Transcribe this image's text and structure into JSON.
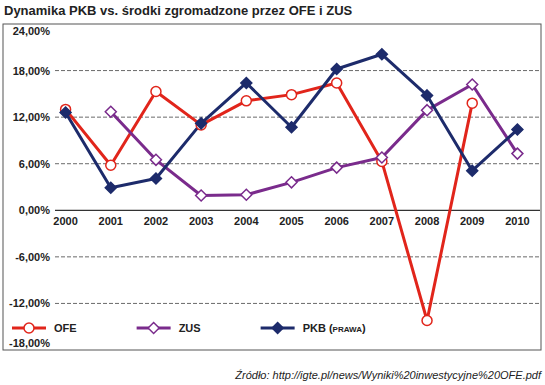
{
  "chart_data": {
    "type": "line",
    "title": "Dynamika PKB vs. środki zgromadzone przez OFE i ZUS",
    "source": "Źródło: http://igte.pl/news/Wyniki%20inwestycyjne%20OFE.pdf",
    "categories": [
      "2000",
      "2001",
      "2002",
      "2003",
      "2004",
      "2005",
      "2006",
      "2007",
      "2008",
      "2009",
      "2010"
    ],
    "series": [
      {
        "name": "OFE",
        "color": "#e1251b",
        "marker": "open-circle",
        "line_style": "solid",
        "values": [
          13.0,
          5.8,
          15.3,
          11.0,
          14.1,
          14.9,
          16.4,
          6.3,
          -14.2,
          13.8,
          null
        ]
      },
      {
        "name": "ZUS",
        "color": "#7a2b8c",
        "marker": "open-diamond",
        "line_style": "solid",
        "values": [
          null,
          12.7,
          6.5,
          1.9,
          2.0,
          3.6,
          5.5,
          6.8,
          12.9,
          16.2,
          7.3
        ]
      },
      {
        "name": "PKB (prawa)",
        "color": "#1d2b6b",
        "marker": "diamond",
        "line_style": "solid",
        "values": [
          12.6,
          2.9,
          4.1,
          11.2,
          16.4,
          10.7,
          18.2,
          20.1,
          14.8,
          5.1,
          10.4
        ]
      }
    ],
    "ylim": [
      -18,
      24
    ],
    "yticks": [
      {
        "value": -18,
        "label": "-18,00%"
      },
      {
        "value": -12,
        "label": "-12,00%"
      },
      {
        "value": -6,
        "label": "-6,00%"
      },
      {
        "value": 0,
        "label": "0,00%"
      },
      {
        "value": 6,
        "label": "6,00%"
      },
      {
        "value": 12,
        "label": "12,00%"
      },
      {
        "value": 18,
        "label": "18,00%"
      },
      {
        "value": 24,
        "label": "24,00%"
      }
    ],
    "grid": true,
    "legend": "bottom"
  }
}
